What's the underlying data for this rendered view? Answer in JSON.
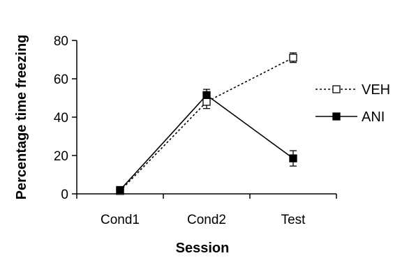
{
  "chart_data": {
    "type": "line",
    "title": "",
    "xlabel": "Session",
    "ylabel": "Percentage time freezing",
    "categories": [
      "Cond1",
      "Cond2",
      "Test"
    ],
    "ylim": [
      0,
      80
    ],
    "yticks": [
      "0",
      "20",
      "40",
      "60",
      "80"
    ],
    "grid": false,
    "legend_position": "right",
    "series": [
      {
        "name": "VEH",
        "values": [
          1.5,
          48,
          71
        ],
        "errors": [
          1,
          3.5,
          2.5
        ],
        "line_style": "dotted",
        "marker": "open-square",
        "color": "#000000"
      },
      {
        "name": "ANI",
        "values": [
          2,
          51.5,
          18.5
        ],
        "errors": [
          1,
          3,
          4
        ],
        "line_style": "solid",
        "marker": "filled-square",
        "color": "#000000"
      }
    ]
  }
}
